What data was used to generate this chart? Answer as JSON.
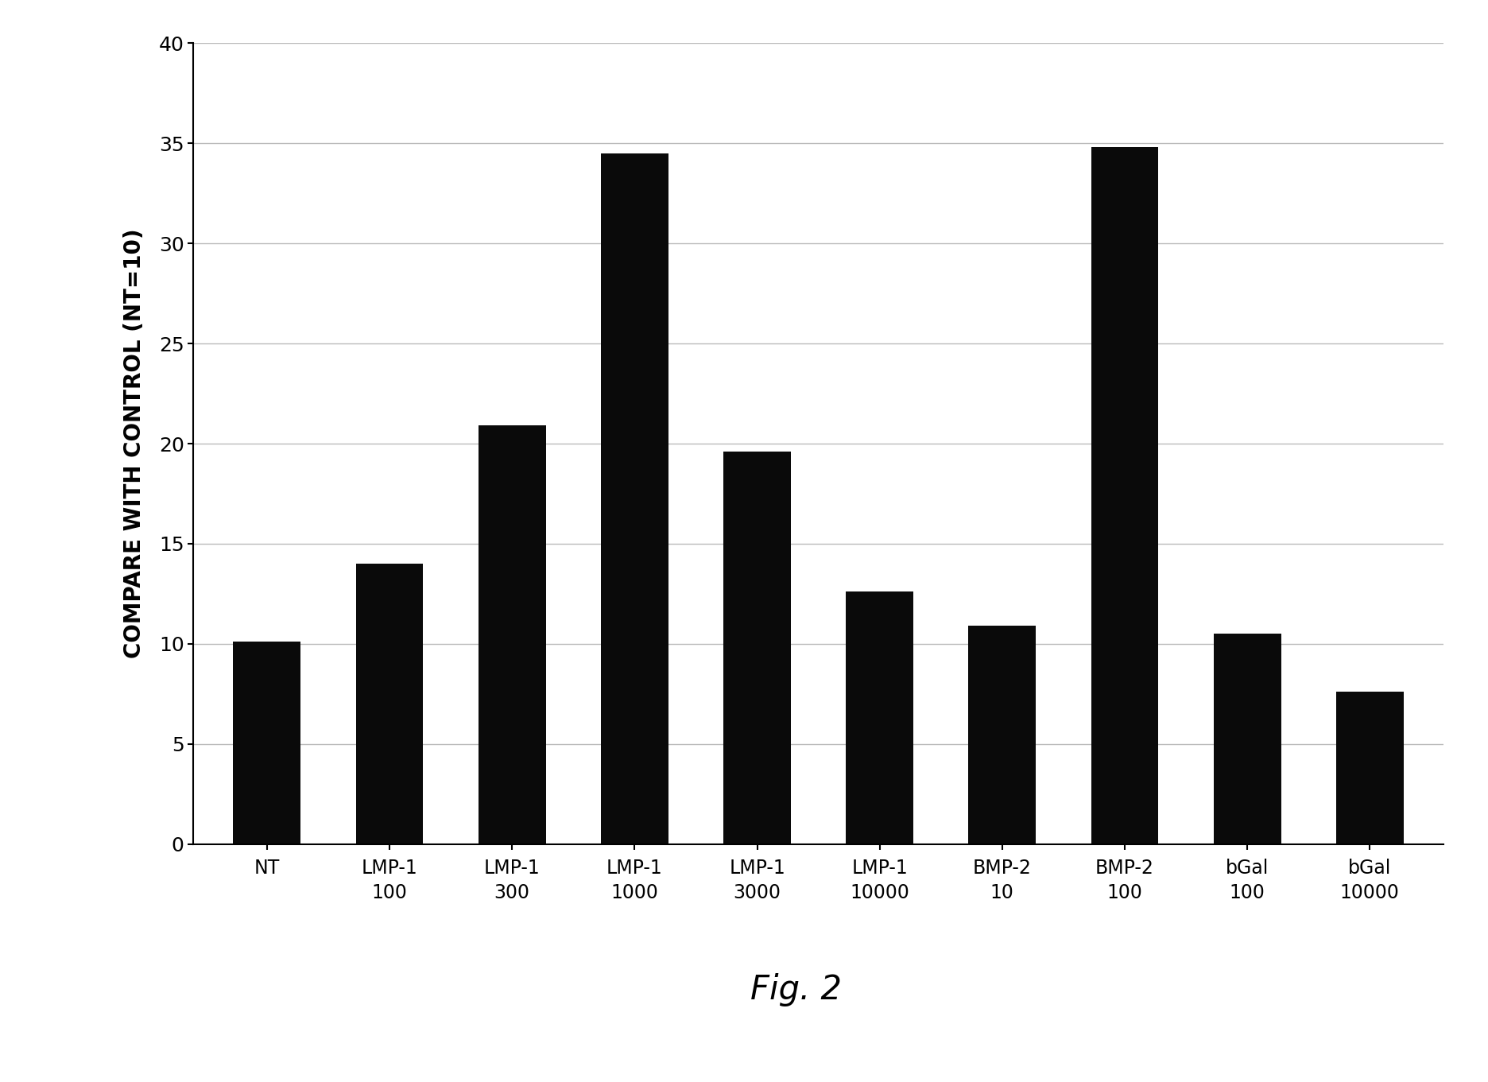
{
  "categories": [
    "NT",
    "LMP-1\n100",
    "LMP-1\n300",
    "LMP-1\n1000",
    "LMP-1\n3000",
    "LMP-1\n10000",
    "BMP-2\n10",
    "BMP-2\n100",
    "bGal\n100",
    "bGal\n10000"
  ],
  "values": [
    10.1,
    14.0,
    20.9,
    34.5,
    19.6,
    12.6,
    10.9,
    34.8,
    10.5,
    7.6
  ],
  "bar_color": "#0a0a0a",
  "ylabel": "COMPARE WITH CONTROL (NT=10)",
  "ylim": [
    0,
    40
  ],
  "yticks": [
    0,
    5,
    10,
    15,
    20,
    25,
    30,
    35,
    40
  ],
  "figure_caption": "Fig. 2",
  "background_color": "#ffffff",
  "bar_width": 0.55,
  "ylabel_fontsize": 20,
  "xtick_fontsize": 17,
  "ytick_fontsize": 18,
  "caption_fontsize": 30,
  "grid_color": "#bbbbbb",
  "grid_linewidth": 1.0,
  "spine_linewidth": 1.5
}
